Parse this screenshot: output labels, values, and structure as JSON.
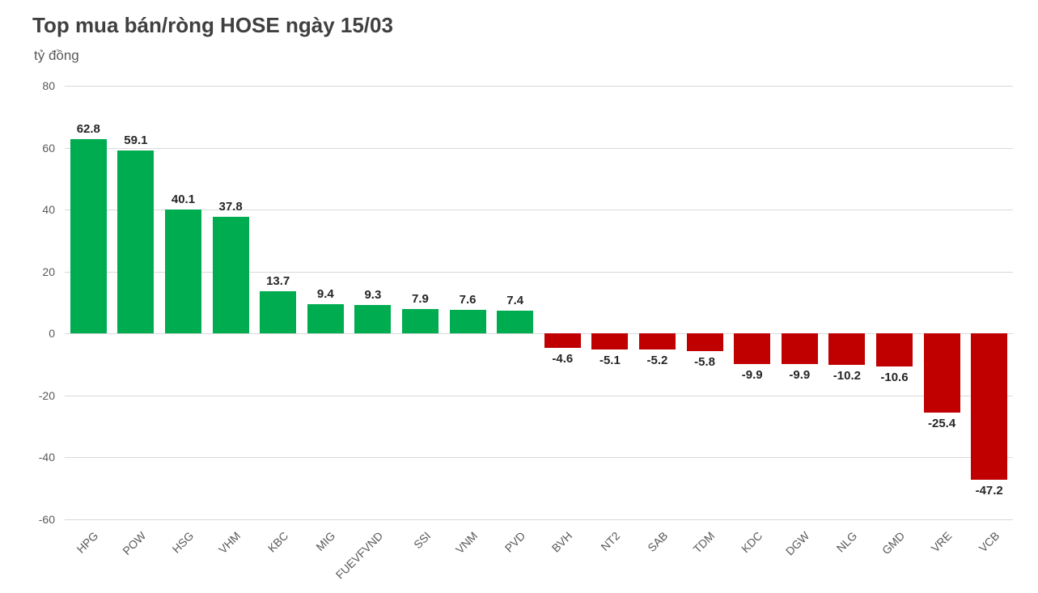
{
  "chart_data": {
    "type": "bar",
    "title": "Top mua bán/ròng HOSE ngày 15/03",
    "ylabel": "tỷ đồng",
    "xlabel": "",
    "categories": [
      "HPG",
      "POW",
      "HSG",
      "VHM",
      "KBC",
      "MIG",
      "FUEVFVND",
      "SSI",
      "VNM",
      "PVD",
      "BVH",
      "NT2",
      "SAB",
      "TDM",
      "KDC",
      "DGW",
      "NLG",
      "GMD",
      "VRE",
      "VCB"
    ],
    "values": [
      62.8,
      59.1,
      40.1,
      37.8,
      13.7,
      9.4,
      9.3,
      7.9,
      7.6,
      7.4,
      -4.6,
      -5.1,
      -5.2,
      -5.8,
      -9.9,
      -9.9,
      -10.2,
      -10.6,
      -25.4,
      -47.2
    ],
    "value_labels": [
      "62.8",
      "59.1",
      "40.1",
      "37.8",
      "13.7",
      "9.4",
      "9.3",
      "7.9",
      "7.6",
      "7.4",
      "-4.6",
      "-5.1",
      "-5.2",
      "-5.8",
      "-9.9",
      "-9.9",
      "-10.2",
      "-10.6",
      "-25.4",
      "-47.2"
    ],
    "ylim": [
      -60,
      80
    ],
    "yticks": [
      80,
      60,
      40,
      20,
      0,
      -20,
      -40,
      -60
    ],
    "grid": true,
    "legend": "none",
    "colors": {
      "positive_bar": "#00AC50",
      "negative_bar": "#C00000",
      "gridline": "#D9D9D9",
      "axis_labels": "#595959",
      "value_labels": "#262626",
      "title": "#404040"
    }
  }
}
